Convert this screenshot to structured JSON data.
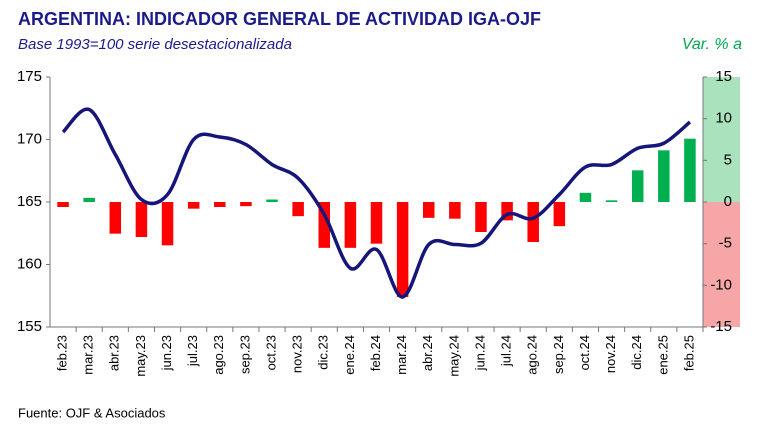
{
  "chart_data": {
    "type": "combo",
    "title": "ARGENTINA: INDICADOR GENERAL DE ACTIVIDAD IGA-OJF",
    "subtitle": "Base 1993=100 serie desestacionalizada",
    "y2_label": "Var. % a",
    "source": "Fuente: OJF & Asociados",
    "categories": [
      "feb.23",
      "mar.23",
      "abr.23",
      "may.23",
      "jun.23",
      "jul.23",
      "ago.23",
      "sep.23",
      "oct.23",
      "nov.23",
      "dic.23",
      "ene.24",
      "feb.24",
      "mar.24",
      "abr.24",
      "may.24",
      "jun.24",
      "jul.24",
      "ago.24",
      "sep.24",
      "oct.24",
      "nov.24",
      "dic.24",
      "ene.25",
      "feb.25"
    ],
    "ylim": [
      155,
      175
    ],
    "yticks": [
      155,
      160,
      165,
      170,
      175
    ],
    "y2lim": [
      -15,
      15
    ],
    "y2ticks": [
      -15,
      -10,
      -5,
      0,
      5,
      10,
      15
    ],
    "y2_positive_band": "#a9e2bc",
    "y2_negative_band": "#f6a6a6",
    "series": [
      {
        "type": "bar",
        "axis": "y2",
        "color": "#ff0000",
        "positive_color": "#00b050",
        "values": [
          -0.6,
          0.5,
          -3.8,
          -4.2,
          -5.2,
          -0.8,
          -0.6,
          -0.5,
          0.3,
          -1.7,
          -5.5,
          -5.5,
          -5.0,
          -11.4,
          -1.9,
          -2.0,
          -3.6,
          -2.2,
          -4.8,
          -2.9,
          1.1,
          0.2,
          3.8,
          6.2,
          7.6
        ]
      },
      {
        "type": "line",
        "color": "#15157a",
        "values": [
          170.6,
          172.4,
          168.8,
          165.2,
          165.6,
          170.0,
          170.2,
          169.6,
          168.0,
          166.9,
          164.0,
          159.7,
          161.2,
          157.4,
          161.6,
          161.6,
          161.7,
          164.0,
          163.7,
          165.6,
          167.8,
          168.0,
          169.3,
          169.7,
          171.4
        ]
      }
    ]
  }
}
